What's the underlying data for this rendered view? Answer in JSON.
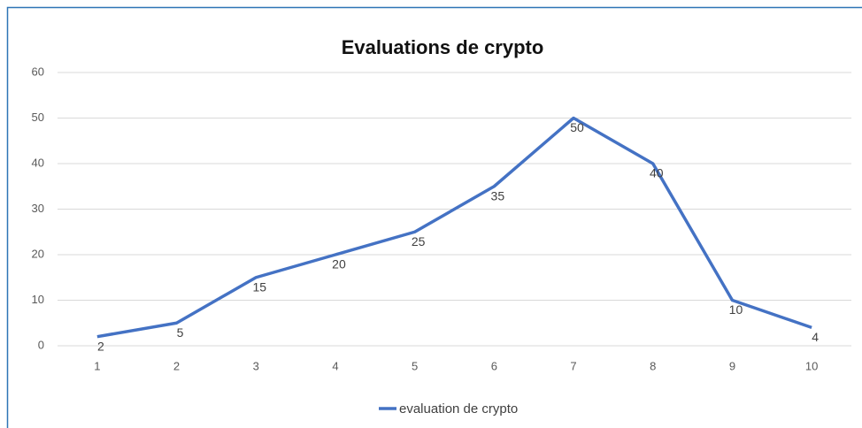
{
  "chart_data": {
    "type": "line",
    "title": "Evaluations de crypto",
    "categories": [
      "1",
      "2",
      "3",
      "4",
      "5",
      "6",
      "7",
      "8",
      "9",
      "10"
    ],
    "series": [
      {
        "name": "evaluation de crypto",
        "color": "#4472c4",
        "values": [
          2,
          5,
          15,
          20,
          25,
          35,
          50,
          40,
          10,
          4
        ]
      }
    ],
    "ylim": [
      0,
      60
    ],
    "yticks": [
      0,
      10,
      20,
      30,
      40,
      50,
      60
    ],
    "grid": true,
    "legend": "bottom"
  }
}
